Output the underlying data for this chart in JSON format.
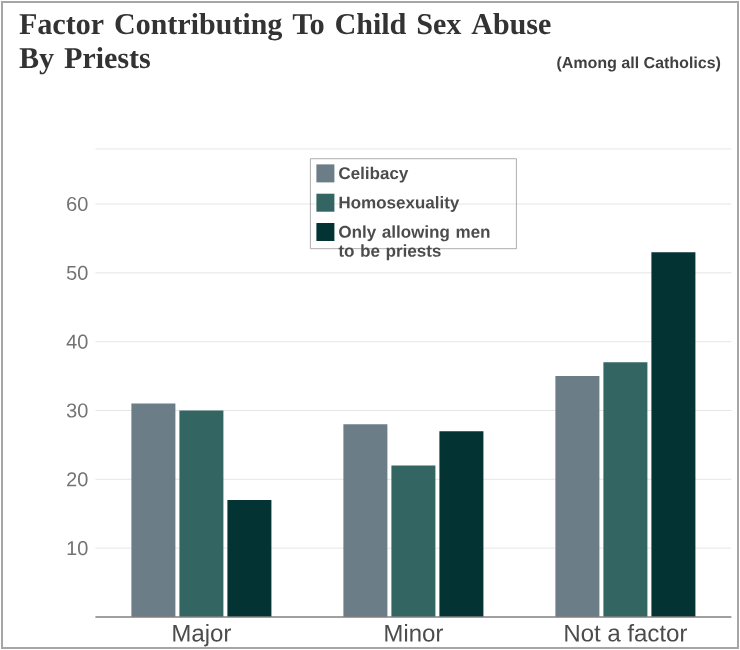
{
  "chart_data": {
    "type": "bar",
    "title": "Factor Contributing To Child Sex Abuse By Priests",
    "subtitle": "(Among all Catholics)",
    "categories": [
      "Major",
      "Minor",
      "Not a factor"
    ],
    "series": [
      {
        "name": "Celibacy",
        "color": "#6b7d87",
        "values": [
          31,
          28,
          35
        ]
      },
      {
        "name": "Homosexuality",
        "color": "#336663",
        "values": [
          30,
          22,
          37
        ]
      },
      {
        "name": "Only allowing men to be priests",
        "color": "#033333",
        "values": [
          17,
          27,
          53
        ]
      }
    ],
    "ylim": [
      0,
      68
    ],
    "yticks": [
      10,
      20,
      30,
      40,
      50,
      60
    ],
    "grid": "y",
    "legend": "top"
  }
}
